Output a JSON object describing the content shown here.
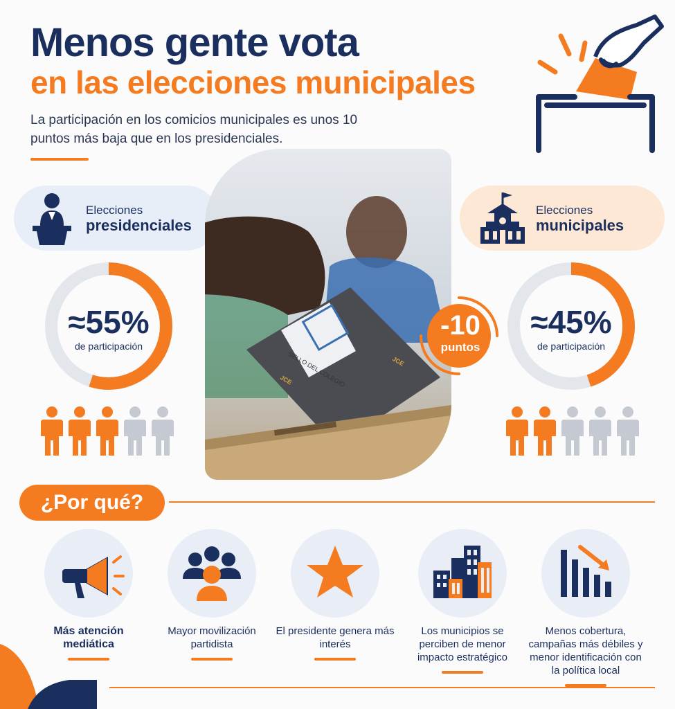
{
  "header": {
    "title_line1": "Menos gente vota",
    "title_line2": "en las elecciones municipales",
    "subtitle": "La participación en los comicios municipales es unos 10 puntos más baja que en los presidenciales."
  },
  "presidential": {
    "label_top": "Elecciones",
    "label_bold": "presidenciales",
    "value": "≈55%",
    "value_label": "de participación",
    "participation_fraction": 0.55,
    "people_active": 3,
    "people_total": 5
  },
  "municipal": {
    "label_top": "Elecciones",
    "label_bold": "municipales",
    "value": "≈45%",
    "value_label": "de participación",
    "participation_fraction": 0.45,
    "people_active": 2,
    "people_total": 5
  },
  "difference_badge": {
    "value": "-10",
    "label": "puntos"
  },
  "photo": {
    "box_label": "JCE",
    "ballot_stamp": "SELLO DEL COLEGIO"
  },
  "why": {
    "heading": "¿Por qué?",
    "reasons": [
      {
        "icon": "megaphone-icon",
        "text": "Más atención mediática",
        "bold": true
      },
      {
        "icon": "people-group-icon",
        "text": "Mayor movilización partidista",
        "bold": false
      },
      {
        "icon": "star-icon",
        "text": "El presidente genera más interés",
        "bold": false
      },
      {
        "icon": "buildings-icon",
        "text": "Los municipios se perciben de menor impacto estratégico",
        "bold": false
      },
      {
        "icon": "declining-bars-icon",
        "text": "Menos cobertura, campañas más débiles y menor identificación con la política local",
        "bold": false
      }
    ]
  },
  "colors": {
    "navy": "#1b2f5e",
    "orange": "#f47b20",
    "gray": "#c4c9d2",
    "light_blue_bg": "#e8eef7",
    "light_orange_bg": "#fde8d5"
  }
}
